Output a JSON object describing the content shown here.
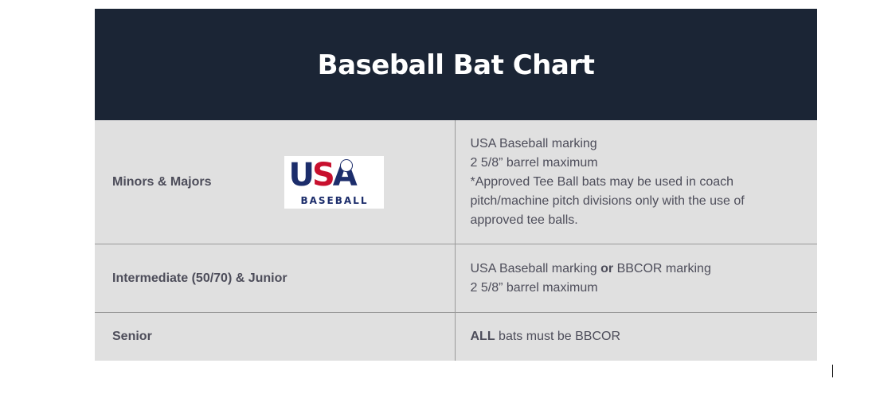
{
  "chart": {
    "title": "Baseball Bat Chart",
    "rows": [
      {
        "division": "Minors & Majors",
        "logo": {
          "word_u": "U",
          "word_s": "S",
          "word_a": "A",
          "subtitle": "BASEBALL"
        },
        "rule_lines": [
          "USA Baseball marking",
          "2 5/8” barrel maximum",
          "*Approved Tee Ball bats may be used in coach",
          "pitch/machine pitch divisions only with the use of",
          "approved tee balls."
        ]
      },
      {
        "division": "Intermediate (50/70) & Junior",
        "rule_line1_a": "USA Baseball marking ",
        "rule_line1_b": "or",
        "rule_line1_c": " BBCOR marking",
        "rule_line2": "2 5/8” barrel maximum"
      },
      {
        "division": "Senior",
        "rule_bold": "ALL",
        "rule_rest": " bats must be BBCOR"
      }
    ]
  },
  "colors": {
    "header_bg": "#1b2535",
    "row_bg": "#e0e0e0",
    "text": "#4d4d5a",
    "logo_blue": "#1c2d6b",
    "logo_red": "#c8102e"
  }
}
